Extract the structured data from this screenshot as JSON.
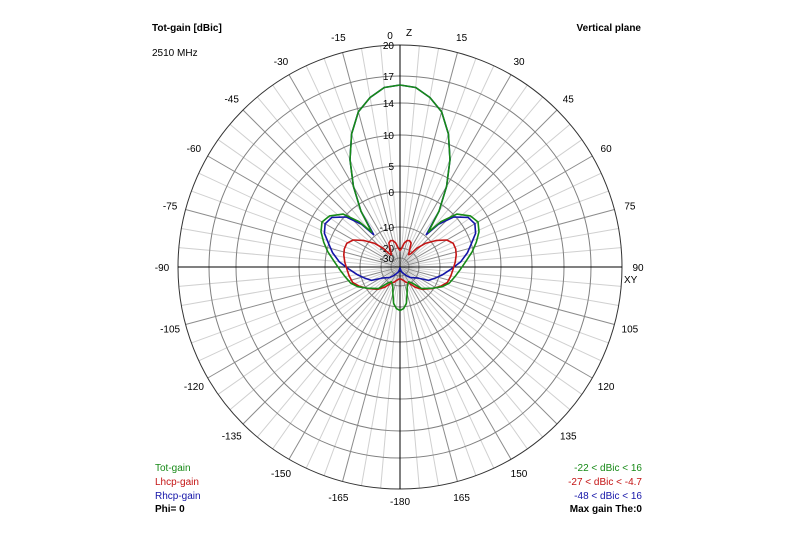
{
  "header": {
    "title": "Tot-gain [dBic]",
    "frequency": "2510 MHz",
    "plane": "Vertical plane"
  },
  "axes": {
    "top_axis_label": "Z",
    "right_axis_label": "XY"
  },
  "legend": {
    "items": [
      {
        "name": "Tot-gain",
        "range": "-22 < dBic < 16",
        "color": "#178a17"
      },
      {
        "name": "Lhcp-gain",
        "range": "-27 < dBic < -4.7",
        "color": "#c41414"
      },
      {
        "name": "Rhcp-gain",
        "range": "-48 < dBic < 16",
        "color": "#1414a8"
      }
    ],
    "phi": "Phi= 0",
    "max_gain": "Max gain The:0"
  },
  "chart_data": {
    "type": "polar-line",
    "title": "Tot-gain [dBic]",
    "radial_unit": "dBic",
    "radial_tick_labels": [
      "20",
      "17",
      "14",
      "10",
      "5",
      "0",
      "-10",
      "-20",
      "-30"
    ],
    "radial_ticks": [
      20,
      17,
      14,
      10,
      5,
      0,
      -10,
      -20,
      -30
    ],
    "angle_tick_labels": [
      "0",
      "15",
      "30",
      "45",
      "60",
      "75",
      "90",
      "105",
      "120",
      "135",
      "150",
      "165",
      "-180",
      "-165",
      "-150",
      "-135",
      "-120",
      "-105",
      "-90",
      "-75",
      "-60",
      "-45",
      "-30",
      "-15"
    ],
    "angle_ticks": [
      0,
      15,
      30,
      45,
      60,
      75,
      90,
      105,
      120,
      135,
      150,
      165,
      180,
      -165,
      -150,
      -135,
      -120,
      -105,
      -90,
      -75,
      -60,
      -45,
      -30,
      -15
    ],
    "angle_grid_step_deg": 5,
    "grid": true,
    "theta": [
      -180,
      -175,
      -170,
      -165,
      -160,
      -150,
      -143,
      -135,
      -123,
      -115,
      -108,
      -100,
      -93,
      -85,
      -78,
      -72,
      -66,
      -60,
      -54,
      -47,
      -42,
      -39,
      -35,
      -30,
      -25,
      -20,
      -15,
      -10,
      -5,
      0,
      5,
      10,
      15,
      20,
      25,
      30,
      35,
      39,
      42,
      47,
      54,
      60,
      66,
      72,
      78,
      85,
      93,
      100,
      108,
      115,
      123,
      135,
      143,
      150,
      160,
      165,
      170,
      175,
      180
    ],
    "series": [
      {
        "name": "Rhcp-gain",
        "color": "#1414a8",
        "values": [
          -45,
          -48,
          -46,
          -42,
          -38,
          -32,
          -28,
          -24,
          -19.5,
          -14,
          -11.6,
          -9,
          -7,
          -4,
          -1.7,
          0,
          1.5,
          2.2,
          1.8,
          -0.5,
          -5,
          -9.5,
          -2,
          3.5,
          7.8,
          11.2,
          13.6,
          14.9,
          15.8,
          16,
          15.8,
          14.9,
          13.6,
          11.2,
          7.8,
          3.5,
          -2,
          -9.5,
          -5,
          -0.5,
          1.8,
          2.2,
          1.5,
          0,
          -1.7,
          -4,
          -7,
          -9,
          -11.6,
          -14,
          -19.5,
          -24,
          -28,
          -32,
          -38,
          -42,
          -46,
          -48,
          -45
        ]
      },
      {
        "name": "Lhcp-gain",
        "color": "#c41414",
        "values": [
          -27,
          -27,
          -26,
          -25,
          -23,
          -20,
          -17,
          -14,
          -10.3,
          -8.5,
          -7.2,
          -6.7,
          -6.3,
          -5.6,
          -5,
          -4.7,
          -4.8,
          -6,
          -8.5,
          -12.6,
          -17,
          -22,
          -24,
          -20,
          -16.5,
          -15.7,
          -16,
          -17.5,
          -20,
          -22.6,
          -20,
          -17.5,
          -16,
          -15.7,
          -16.5,
          -20,
          -24,
          -22,
          -17,
          -12.6,
          -8.5,
          -6,
          -4.8,
          -4.7,
          -5,
          -5.6,
          -6.3,
          -6.7,
          -7.2,
          -8.5,
          -10.3,
          -14,
          -17,
          -20,
          -23,
          -25,
          -26,
          -27,
          -27
        ]
      },
      {
        "name": "Tot-gain",
        "color": "#178a17",
        "values": [
          -9,
          -9.5,
          -11.5,
          -16,
          -19,
          -22,
          -19.5,
          -14.5,
          -10.5,
          -8.1,
          -6.6,
          -5.5,
          -4.3,
          -2.5,
          -0.3,
          1,
          2.2,
          2.9,
          2.3,
          0.5,
          -4,
          -8.6,
          -2,
          3.5,
          7.8,
          11.2,
          13.6,
          14.9,
          15.8,
          16,
          15.8,
          14.9,
          13.6,
          11.2,
          7.8,
          3.5,
          -2,
          -8.6,
          -4,
          0.5,
          2.3,
          2.9,
          2.2,
          1,
          -0.3,
          -2.5,
          -4.3,
          -5.5,
          -6.6,
          -8.1,
          -10.5,
          -14.5,
          -19.5,
          -22,
          -19,
          -16,
          -11.5,
          -9.5,
          -9
        ]
      }
    ]
  }
}
